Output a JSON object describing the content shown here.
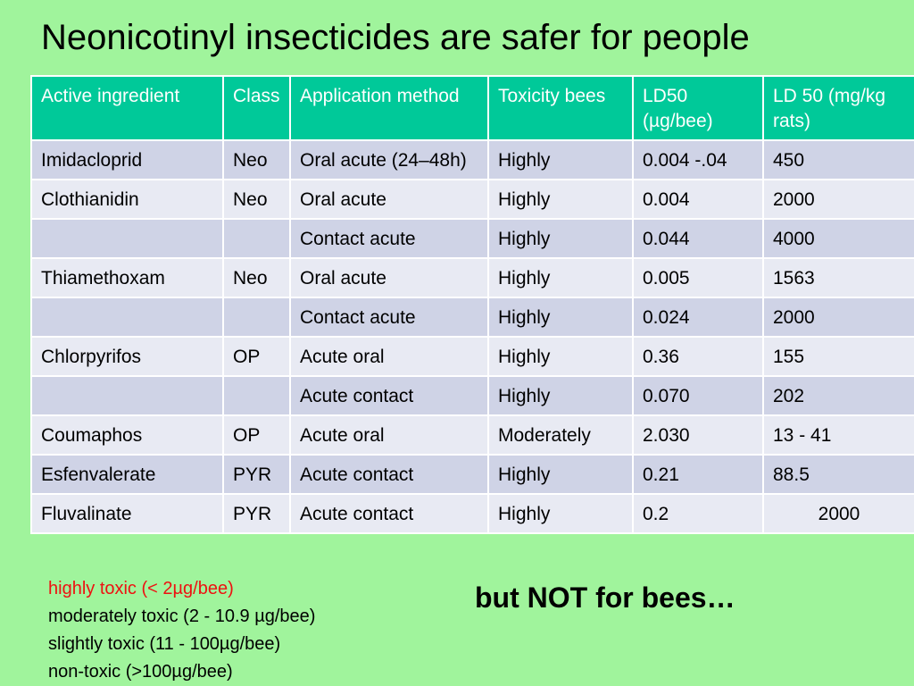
{
  "title": "Neonicotinyl insecticides are safer for people",
  "table": {
    "headers": [
      "Active ingredient",
      "Class",
      "Application method",
      "Toxicity bees",
      "LD50 (µg/bee)",
      "LD 50 (mg/kg rats)"
    ],
    "rows": [
      [
        "Imidacloprid",
        "Neo",
        "Oral acute (24–48h)",
        "Highly",
        "0.004 -.04",
        "450"
      ],
      [
        "Clothianidin",
        "Neo",
        "Oral acute",
        "Highly",
        "0.004",
        "2000"
      ],
      [
        "",
        "",
        "Contact acute",
        "Highly",
        "0.044",
        "4000"
      ],
      [
        "Thiamethoxam",
        "Neo",
        "Oral acute",
        "Highly",
        "0.005",
        "1563"
      ],
      [
        "",
        "",
        "Contact acute",
        "Highly",
        "0.024",
        "2000"
      ],
      [
        "Chlorpyrifos",
        "OP",
        "Acute oral",
        "Highly",
        "0.36",
        "155"
      ],
      [
        "",
        "",
        "Acute contact",
        "Highly",
        "0.070",
        "202"
      ],
      [
        "Coumaphos",
        "OP",
        "Acute oral",
        "Moderately",
        "2.030",
        "13 - 41"
      ],
      [
        "Esfenvalerate",
        "PYR",
        "Acute contact",
        "Highly",
        "0.21",
        "88.5"
      ],
      [
        "Fluvalinate",
        "PYR",
        "Acute contact",
        "Highly",
        "0.2",
        "2000"
      ]
    ]
  },
  "legend": {
    "highly": "highly toxic  (< 2µg/bee)",
    "moderately": "moderately toxic (2 - 10.9 µg/bee)",
    "slightly": "slightly toxic (11 - 100µg/bee)",
    "non": "non-toxic  (>100µg/bee)"
  },
  "punchline": "but NOT for bees…",
  "colors": {
    "background": "#a0f49c",
    "header": "#00c999",
    "row_odd": "#cfd3e6",
    "row_even": "#e8eaf3",
    "legend_red": "#ee1111"
  }
}
